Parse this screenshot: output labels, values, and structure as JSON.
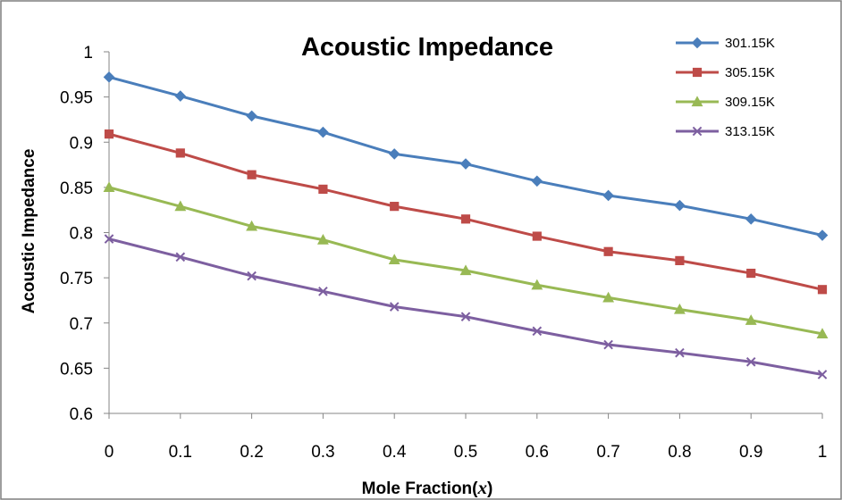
{
  "chart_data": {
    "type": "line",
    "title": "Acoustic Impedance",
    "xlabel": "Mole Fraction(",
    "xlabel_var": "x",
    "xlabel_end": ")",
    "ylabel": "Acoustic Impedance",
    "x": [
      0,
      0.1,
      0.2,
      0.3,
      0.4,
      0.5,
      0.6,
      0.7,
      0.8,
      0.9,
      1
    ],
    "x_tick_labels": [
      "0",
      "0.1",
      "0.2",
      "0.3",
      "0.4",
      "0.5",
      "0.6",
      "0.7",
      "0.8",
      "0.9",
      "1"
    ],
    "ylim": [
      0.6,
      1
    ],
    "y_ticks": [
      0.6,
      0.65,
      0.7,
      0.75,
      0.8,
      0.85,
      0.9,
      0.95,
      1
    ],
    "y_tick_labels": [
      "0.6",
      "0.65",
      "0.7",
      "0.75",
      "0.8",
      "0.85",
      "0.9",
      "0.95",
      "1"
    ],
    "grid": false,
    "legend_position": "top-right",
    "series": [
      {
        "name": "301.15K",
        "color": "#4a7ebb",
        "marker": "diamond",
        "values": [
          0.972,
          0.951,
          0.929,
          0.911,
          0.887,
          0.876,
          0.857,
          0.841,
          0.83,
          0.815,
          0.797
        ]
      },
      {
        "name": "305.15K",
        "color": "#be4b48",
        "marker": "square",
        "values": [
          0.909,
          0.888,
          0.864,
          0.848,
          0.829,
          0.815,
          0.796,
          0.779,
          0.769,
          0.755,
          0.737
        ]
      },
      {
        "name": "309.15K",
        "color": "#98b954",
        "marker": "triangle",
        "values": [
          0.85,
          0.829,
          0.807,
          0.792,
          0.77,
          0.758,
          0.742,
          0.728,
          0.715,
          0.703,
          0.688
        ]
      },
      {
        "name": "313.15K",
        "color": "#7d5fa0",
        "marker": "x",
        "values": [
          0.793,
          0.773,
          0.752,
          0.735,
          0.718,
          0.707,
          0.691,
          0.676,
          0.667,
          0.657,
          0.643
        ]
      }
    ]
  }
}
